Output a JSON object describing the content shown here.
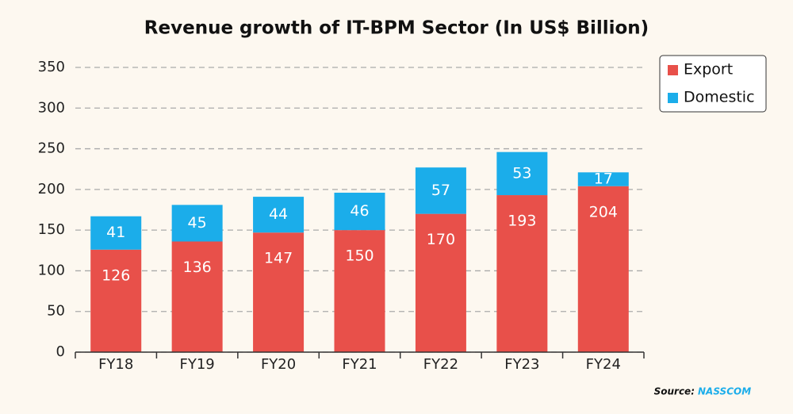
{
  "chart_data": {
    "type": "stacked_bar",
    "title": "Revenue growth of IT-BPM Sector (In US$ Billion)",
    "categories": [
      "FY18",
      "FY19",
      "FY20",
      "FY21",
      "FY22",
      "FY23",
      "FY24"
    ],
    "series": [
      {
        "name": "Export",
        "color": "#e8504a",
        "values": [
          126,
          136,
          147,
          150,
          170,
          193,
          204
        ]
      },
      {
        "name": "Domestic",
        "color": "#1badea",
        "values": [
          41,
          45,
          44,
          46,
          57,
          53,
          17
        ]
      }
    ],
    "ylim": [
      0,
      350
    ],
    "yticks": [
      0,
      50,
      100,
      150,
      200,
      250,
      300,
      350
    ],
    "grid": true,
    "legend": "top-right",
    "source_label": "Source:",
    "source": "NASSCOM"
  }
}
